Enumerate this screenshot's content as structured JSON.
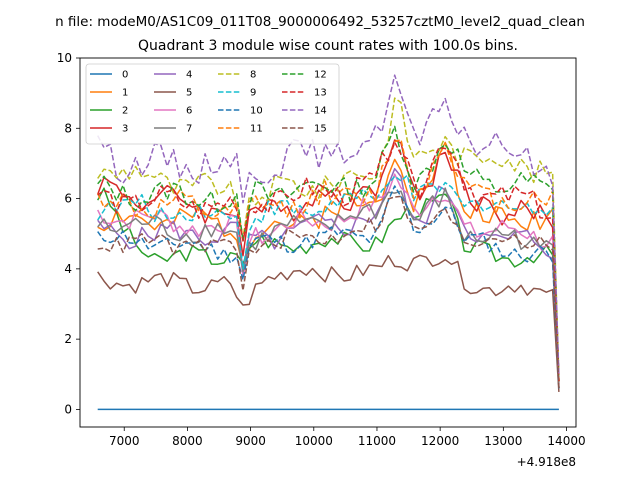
{
  "chart_data": {
    "type": "line",
    "suptitle": "n file: modeM0/AS1C09_011T08_9000006492_53257cztM0_level2_quad_clean",
    "title": "Quadrant 3 module wise count rates with 100.0s bins.",
    "xlabel": "",
    "ylabel": "",
    "x_offset_label": "+4.918e8",
    "x_range": [
      6580,
      13880
    ],
    "x_step": 100,
    "xlim": [
      6300,
      14150
    ],
    "ylim": [
      -0.5,
      10
    ],
    "xticks": [
      7000,
      8000,
      9000,
      10000,
      11000,
      12000,
      13000,
      14000
    ],
    "xtick_labels": [
      "7000",
      "8000",
      "9000",
      "10000",
      "11000",
      "12000",
      "13000",
      "14000"
    ],
    "yticks": [
      0,
      2,
      4,
      6,
      8,
      10
    ],
    "ytick_labels": [
      "0",
      "2",
      "4",
      "6",
      "8",
      "10"
    ],
    "grid": false,
    "legend_position": "top-left",
    "legend_columns": 4,
    "series": [
      {
        "name": "0",
        "color": "#1f77b4",
        "dashed": false,
        "base": 0,
        "amp": 0,
        "phase": 0,
        "seed": 1,
        "keys": [
          [
            6580,
            0
          ],
          [
            13880,
            0
          ]
        ]
      },
      {
        "name": "1",
        "color": "#ff7f0e",
        "dashed": false,
        "base": 5.4,
        "amp": 0.35,
        "phase": 0.3,
        "seed": 2,
        "keys": [
          [
            6580,
            5.4
          ],
          [
            8800,
            5.3
          ],
          [
            8850,
            4.0
          ],
          [
            9000,
            5.0
          ],
          [
            11000,
            6.0
          ],
          [
            11300,
            7.5
          ],
          [
            11600,
            5.6
          ],
          [
            12100,
            7.7
          ],
          [
            12400,
            5.5
          ],
          [
            13800,
            5.4
          ],
          [
            13880,
            0.8
          ]
        ]
      },
      {
        "name": "2",
        "color": "#2ca02c",
        "dashed": false,
        "base": 4.3,
        "amp": 0.25,
        "phase": 1.1,
        "seed": 3,
        "keys": [
          [
            6580,
            6.1
          ],
          [
            6700,
            6.0
          ],
          [
            7000,
            5.0
          ],
          [
            7500,
            4.3
          ],
          [
            8800,
            4.4
          ],
          [
            8850,
            3.8
          ],
          [
            9000,
            4.7
          ],
          [
            11000,
            4.8
          ],
          [
            11300,
            5.3
          ],
          [
            12100,
            6.2
          ],
          [
            12400,
            4.5
          ],
          [
            13800,
            4.3
          ],
          [
            13880,
            0.6
          ]
        ]
      },
      {
        "name": "3",
        "color": "#d62728",
        "dashed": false,
        "base": 5.8,
        "amp": 0.35,
        "phase": 2.0,
        "seed": 4,
        "keys": [
          [
            6580,
            6.3
          ],
          [
            8800,
            5.6
          ],
          [
            8850,
            4.2
          ],
          [
            9000,
            5.6
          ],
          [
            11000,
            6.3
          ],
          [
            11300,
            7.9
          ],
          [
            11600,
            6.0
          ],
          [
            12100,
            7.4
          ],
          [
            12400,
            6.0
          ],
          [
            13800,
            5.3
          ],
          [
            13880,
            0.8
          ]
        ]
      },
      {
        "name": "4",
        "color": "#9467bd",
        "dashed": false,
        "base": 5.0,
        "amp": 0.3,
        "phase": 2.7,
        "seed": 5,
        "keys": [
          [
            6580,
            5.0
          ],
          [
            8800,
            5.0
          ],
          [
            8850,
            3.6
          ],
          [
            9000,
            4.8
          ],
          [
            11000,
            5.5
          ],
          [
            11300,
            6.8
          ],
          [
            11600,
            5.3
          ],
          [
            12100,
            6.3
          ],
          [
            12400,
            5.1
          ],
          [
            13800,
            4.6
          ],
          [
            13880,
            0.6
          ]
        ]
      },
      {
        "name": "5",
        "color": "#8c564b",
        "dashed": false,
        "base": 3.6,
        "amp": 0.25,
        "phase": 3.3,
        "seed": 6,
        "keys": [
          [
            6580,
            3.7
          ],
          [
            8700,
            3.5
          ],
          [
            8870,
            2.7
          ],
          [
            9050,
            3.4
          ],
          [
            9300,
            3.9
          ],
          [
            11000,
            3.9
          ],
          [
            11300,
            4.3
          ],
          [
            12100,
            4.3
          ],
          [
            12400,
            3.6
          ],
          [
            13800,
            3.3
          ],
          [
            13880,
            0.5
          ]
        ]
      },
      {
        "name": "6",
        "color": "#e377c2",
        "dashed": false,
        "base": 5.2,
        "amp": 0.3,
        "phase": 4.0,
        "seed": 7,
        "keys": [
          [
            6580,
            5.6
          ],
          [
            8800,
            5.1
          ],
          [
            8850,
            3.7
          ],
          [
            9000,
            5.0
          ],
          [
            11000,
            5.7
          ],
          [
            11300,
            6.8
          ],
          [
            11600,
            5.7
          ],
          [
            12100,
            6.1
          ],
          [
            12400,
            5.2
          ],
          [
            13800,
            4.9
          ],
          [
            13880,
            0.7
          ]
        ]
      },
      {
        "name": "7",
        "color": "#7f7f7f",
        "dashed": false,
        "base": 5.0,
        "amp": 0.3,
        "phase": 4.6,
        "seed": 8,
        "keys": [
          [
            6580,
            5.3
          ],
          [
            8800,
            5.0
          ],
          [
            8850,
            3.8
          ],
          [
            9000,
            4.9
          ],
          [
            11000,
            5.6
          ],
          [
            11300,
            6.6
          ],
          [
            11600,
            5.3
          ],
          [
            12100,
            6.0
          ],
          [
            12400,
            5.0
          ],
          [
            13800,
            4.7
          ],
          [
            13880,
            0.6
          ]
        ]
      },
      {
        "name": "8",
        "color": "#bcbd22",
        "dashed": true,
        "base": 6.3,
        "amp": 0.35,
        "phase": 5.2,
        "seed": 9,
        "keys": [
          [
            6580,
            6.9
          ],
          [
            8800,
            6.1
          ],
          [
            8850,
            4.5
          ],
          [
            9000,
            6.1
          ],
          [
            11000,
            6.7
          ],
          [
            11300,
            9.1
          ],
          [
            11600,
            7.0
          ],
          [
            12100,
            7.6
          ],
          [
            12400,
            7.3
          ],
          [
            13800,
            6.8
          ],
          [
            13880,
            0.9
          ]
        ]
      },
      {
        "name": "9",
        "color": "#17becf",
        "dashed": true,
        "base": 5.6,
        "amp": 0.3,
        "phase": 5.9,
        "seed": 10,
        "keys": [
          [
            6580,
            5.8
          ],
          [
            8800,
            5.5
          ],
          [
            8850,
            4.1
          ],
          [
            9000,
            5.5
          ],
          [
            11000,
            6.0
          ],
          [
            11300,
            7.0
          ],
          [
            11600,
            5.8
          ],
          [
            12100,
            6.5
          ],
          [
            12400,
            5.8
          ],
          [
            13800,
            5.8
          ],
          [
            13880,
            0.8
          ]
        ]
      },
      {
        "name": "10",
        "color": "#1f77b4",
        "dashed": true,
        "base": 4.6,
        "amp": 0.25,
        "phase": 0.8,
        "seed": 11,
        "keys": [
          [
            6580,
            4.9
          ],
          [
            8800,
            4.5
          ],
          [
            8850,
            3.5
          ],
          [
            9000,
            4.7
          ],
          [
            11000,
            5.0
          ],
          [
            11300,
            6.3
          ],
          [
            11600,
            5.0
          ],
          [
            12100,
            5.9
          ],
          [
            12400,
            4.8
          ],
          [
            13800,
            4.3
          ],
          [
            13880,
            0.6
          ]
        ]
      },
      {
        "name": "11",
        "color": "#ff7f0e",
        "dashed": true,
        "base": 5.7,
        "amp": 0.35,
        "phase": 1.6,
        "seed": 12,
        "keys": [
          [
            6580,
            5.9
          ],
          [
            8800,
            5.6
          ],
          [
            8850,
            4.3
          ],
          [
            9000,
            5.7
          ],
          [
            11000,
            6.2
          ],
          [
            11300,
            7.8
          ],
          [
            11600,
            6.1
          ],
          [
            12100,
            7.8
          ],
          [
            12400,
            6.1
          ],
          [
            13800,
            5.9
          ],
          [
            13880,
            0.8
          ]
        ]
      },
      {
        "name": "12",
        "color": "#2ca02c",
        "dashed": true,
        "base": 6.1,
        "amp": 0.35,
        "phase": 2.4,
        "seed": 13,
        "keys": [
          [
            6580,
            6.2
          ],
          [
            8800,
            6.0
          ],
          [
            8850,
            4.6
          ],
          [
            9000,
            6.1
          ],
          [
            11000,
            6.5
          ],
          [
            11300,
            7.9
          ],
          [
            11600,
            6.5
          ],
          [
            12100,
            7.7
          ],
          [
            12400,
            6.6
          ],
          [
            13800,
            6.2
          ],
          [
            13880,
            0.8
          ]
        ]
      },
      {
        "name": "13",
        "color": "#d62728",
        "dashed": true,
        "base": 5.9,
        "amp": 0.35,
        "phase": 3.1,
        "seed": 14,
        "keys": [
          [
            6580,
            6.0
          ],
          [
            8800,
            5.8
          ],
          [
            8850,
            4.4
          ],
          [
            9000,
            5.9
          ],
          [
            11000,
            6.4
          ],
          [
            11300,
            7.9
          ],
          [
            11600,
            6.3
          ],
          [
            12100,
            7.6
          ],
          [
            12400,
            6.4
          ],
          [
            13800,
            5.6
          ],
          [
            13880,
            0.8
          ]
        ]
      },
      {
        "name": "14",
        "color": "#9467bd",
        "dashed": true,
        "base": 6.9,
        "amp": 0.4,
        "phase": 3.8,
        "seed": 15,
        "keys": [
          [
            6580,
            7.9
          ],
          [
            6700,
            7.4
          ],
          [
            7000,
            7.0
          ],
          [
            8800,
            7.0
          ],
          [
            8850,
            5.3
          ],
          [
            9000,
            6.9
          ],
          [
            11000,
            7.6
          ],
          [
            11300,
            9.6
          ],
          [
            11600,
            7.7
          ],
          [
            12100,
            8.3
          ],
          [
            12400,
            7.9
          ],
          [
            13800,
            6.7
          ],
          [
            13880,
            1.0
          ]
        ]
      },
      {
        "name": "15",
        "color": "#8c564b",
        "dashed": true,
        "base": 4.8,
        "amp": 0.25,
        "phase": 4.5,
        "seed": 16,
        "keys": [
          [
            6580,
            4.8
          ],
          [
            8800,
            4.6
          ],
          [
            8850,
            3.4
          ],
          [
            9000,
            4.6
          ],
          [
            11000,
            5.2
          ],
          [
            11300,
            6.4
          ],
          [
            11600,
            5.0
          ],
          [
            12100,
            5.5
          ],
          [
            12400,
            4.9
          ],
          [
            13800,
            4.8
          ],
          [
            13880,
            0.6
          ]
        ]
      }
    ]
  }
}
